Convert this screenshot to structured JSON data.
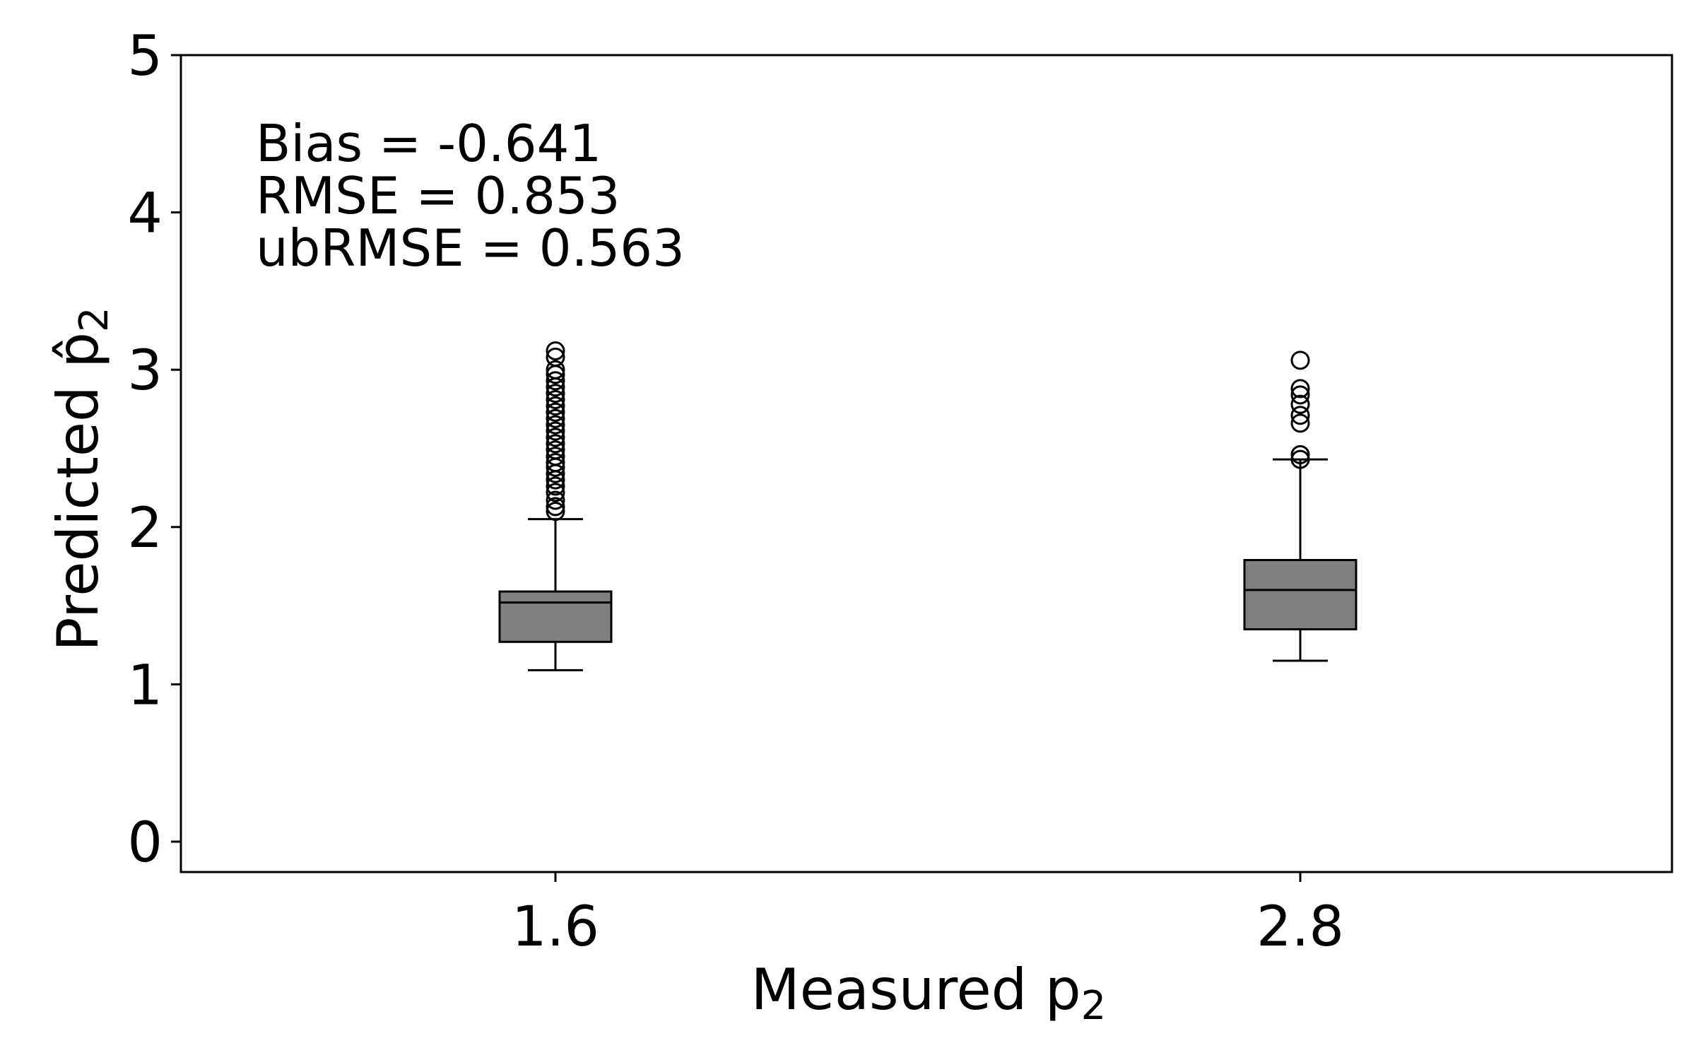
{
  "chart_data": {
    "type": "box",
    "categories": [
      "1.6",
      "2.8"
    ],
    "boxes": [
      {
        "category": "1.6",
        "whisker_low": 1.09,
        "q1": 1.27,
        "median": 1.52,
        "q3": 1.59,
        "whisker_high": 2.05,
        "outliers": [
          2.1,
          2.13,
          2.17,
          2.22,
          2.26,
          2.3,
          2.34,
          2.38,
          2.41,
          2.45,
          2.49,
          2.53,
          2.57,
          2.61,
          2.65,
          2.69,
          2.73,
          2.77,
          2.81,
          2.85,
          2.89,
          2.93,
          2.97,
          3.0,
          3.08,
          3.12
        ]
      },
      {
        "category": "2.8",
        "whisker_low": 1.15,
        "q1": 1.35,
        "median": 1.6,
        "q3": 1.79,
        "whisker_high": 2.43,
        "outliers": [
          2.43,
          2.46,
          2.66,
          2.71,
          2.78,
          2.84,
          2.88,
          3.06
        ]
      }
    ],
    "xlabel": "Measured p",
    "xlabel_sub": "2",
    "ylabel": "Predicted p̂",
    "ylabel_sub": "2",
    "ylim": [
      -0.2,
      5
    ],
    "yticks": [
      "0",
      "1",
      "2",
      "3",
      "4",
      "5"
    ],
    "annotations": [
      "Bias = -0.641",
      "RMSE = 0.853",
      "ubRMSE = 0.563"
    ],
    "box_color": "#808080",
    "grid": false
  }
}
